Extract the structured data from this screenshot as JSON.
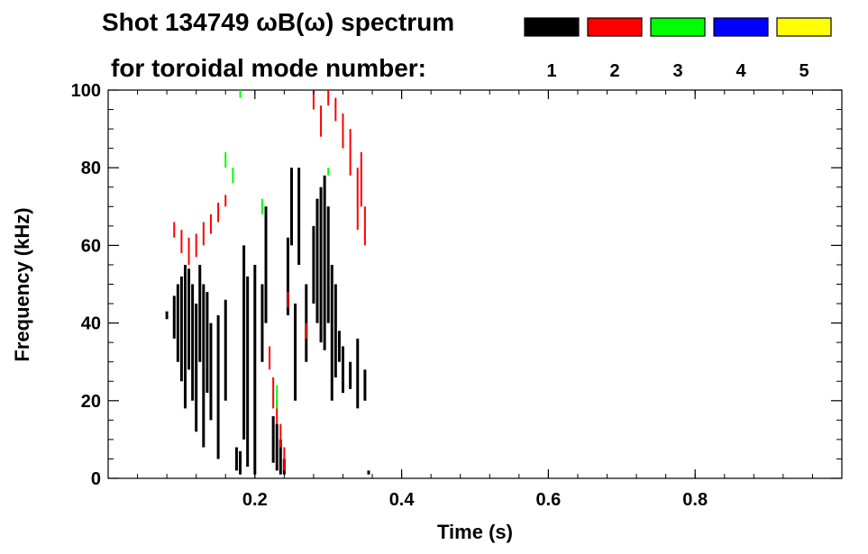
{
  "title": {
    "line1": "Shot 134749 ωB(ω) spectrum",
    "line2": "for toroidal mode number:"
  },
  "colors": {
    "mode1": "#000000",
    "mode2": "#ff0000",
    "mode3": "#00ff00",
    "mode4": "#0000ff",
    "mode5": "#ffff00"
  },
  "chart_data": {
    "type": "scatter",
    "title": "Shot 134749 ωB(ω) spectrum",
    "xlabel": "Time (s)",
    "ylabel": "Frequency (kHz)",
    "xlim": [
      0.0,
      1.0
    ],
    "ylim": [
      0,
      100
    ],
    "x_ticks": [
      {
        "value": 0.2,
        "label": "0.2"
      },
      {
        "value": 0.4,
        "label": "0.4"
      },
      {
        "value": 0.6,
        "label": "0.6"
      },
      {
        "value": 0.8,
        "label": "0.8"
      }
    ],
    "y_ticks": [
      {
        "value": 0,
        "label": "0"
      },
      {
        "value": 20,
        "label": "20"
      },
      {
        "value": 40,
        "label": "40"
      },
      {
        "value": 60,
        "label": "60"
      },
      {
        "value": 80,
        "label": "80"
      },
      {
        "value": 100,
        "label": "100"
      }
    ],
    "legend": {
      "placement": "top-right",
      "entries": [
        {
          "label": "1",
          "color": "#000000"
        },
        {
          "label": "2",
          "color": "#ff0000"
        },
        {
          "label": "3",
          "color": "#00ff00"
        },
        {
          "label": "4",
          "color": "#0000ff"
        },
        {
          "label": "5",
          "color": "#ffff00"
        }
      ]
    },
    "series": [
      {
        "name": "1",
        "color": "#000000",
        "segments": [
          [
            0.08,
            41,
            43
          ],
          [
            0.09,
            36,
            47
          ],
          [
            0.095,
            30,
            50
          ],
          [
            0.1,
            25,
            52
          ],
          [
            0.105,
            18,
            55
          ],
          [
            0.11,
            28,
            54
          ],
          [
            0.115,
            20,
            50
          ],
          [
            0.12,
            12,
            45
          ],
          [
            0.125,
            30,
            55
          ],
          [
            0.13,
            8,
            50
          ],
          [
            0.135,
            22,
            48
          ],
          [
            0.14,
            15,
            40
          ],
          [
            0.15,
            5,
            42
          ],
          [
            0.16,
            20,
            46
          ],
          [
            0.175,
            2,
            8
          ],
          [
            0.18,
            1,
            7
          ],
          [
            0.185,
            10,
            60
          ],
          [
            0.19,
            3,
            52
          ],
          [
            0.2,
            1,
            55
          ],
          [
            0.21,
            30,
            50
          ],
          [
            0.215,
            40,
            70
          ],
          [
            0.225,
            4,
            16
          ],
          [
            0.23,
            2,
            14
          ],
          [
            0.235,
            1,
            10
          ],
          [
            0.24,
            1,
            5
          ],
          [
            0.245,
            42,
            62
          ],
          [
            0.25,
            60,
            80
          ],
          [
            0.255,
            20,
            45
          ],
          [
            0.26,
            55,
            80
          ],
          [
            0.27,
            30,
            50
          ],
          [
            0.28,
            45,
            65
          ],
          [
            0.285,
            40,
            72
          ],
          [
            0.29,
            35,
            75
          ],
          [
            0.295,
            33,
            78
          ],
          [
            0.3,
            40,
            70
          ],
          [
            0.305,
            20,
            55
          ],
          [
            0.31,
            26,
            50
          ],
          [
            0.315,
            30,
            38
          ],
          [
            0.32,
            22,
            34
          ],
          [
            0.33,
            23,
            30
          ],
          [
            0.34,
            18,
            36
          ],
          [
            0.35,
            20,
            28
          ],
          [
            0.355,
            1,
            2
          ]
        ]
      },
      {
        "name": "2",
        "color": "#ff0000",
        "segments": [
          [
            0.09,
            62,
            66
          ],
          [
            0.1,
            58,
            64
          ],
          [
            0.11,
            55,
            62
          ],
          [
            0.12,
            57,
            63
          ],
          [
            0.13,
            60,
            66
          ],
          [
            0.14,
            63,
            68
          ],
          [
            0.15,
            66,
            71
          ],
          [
            0.16,
            70,
            73
          ],
          [
            0.22,
            28,
            34
          ],
          [
            0.225,
            18,
            26
          ],
          [
            0.23,
            14,
            20
          ],
          [
            0.235,
            8,
            14
          ],
          [
            0.24,
            2,
            8
          ],
          [
            0.245,
            44,
            48
          ],
          [
            0.27,
            36,
            40
          ],
          [
            0.28,
            95,
            100
          ],
          [
            0.29,
            88,
            96
          ],
          [
            0.3,
            96,
            100
          ],
          [
            0.31,
            92,
            98
          ],
          [
            0.32,
            85,
            94
          ],
          [
            0.33,
            78,
            90
          ],
          [
            0.34,
            64,
            80
          ],
          [
            0.345,
            70,
            84
          ],
          [
            0.35,
            60,
            70
          ]
        ]
      },
      {
        "name": "3",
        "color": "#00ff00",
        "segments": [
          [
            0.16,
            80,
            84
          ],
          [
            0.17,
            76,
            80
          ],
          [
            0.18,
            98,
            100
          ],
          [
            0.21,
            68,
            72
          ],
          [
            0.23,
            18,
            24
          ],
          [
            0.3,
            78,
            80
          ]
        ]
      }
    ]
  },
  "axes_style": {
    "axis_color": "#000000"
  }
}
